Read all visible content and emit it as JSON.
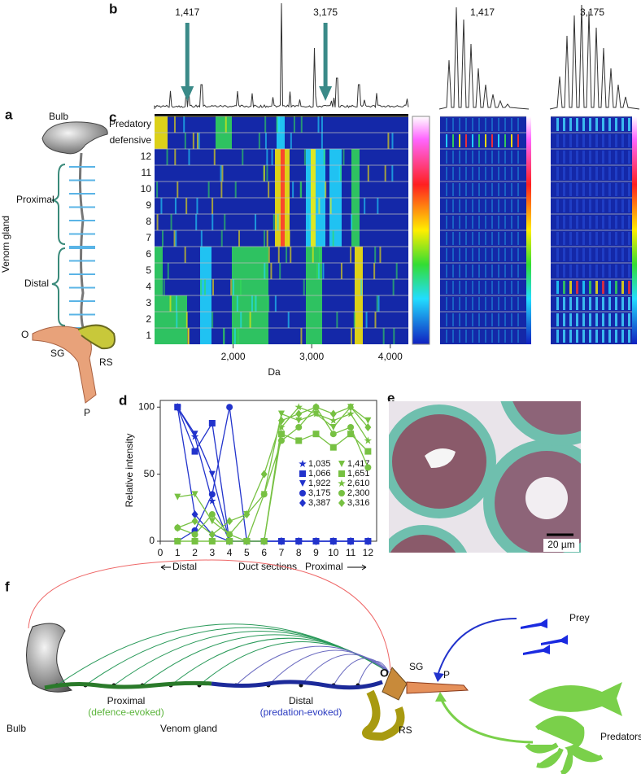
{
  "panel_labels": [
    "a",
    "b",
    "c",
    "d",
    "e",
    "f"
  ],
  "panel_a": {
    "bulb": "Bulb",
    "proximal": "Proximal",
    "distal": "Distal",
    "venom_gland": "Venom gland",
    "o": "O",
    "sg": "SG",
    "rs": "RS",
    "p": "P"
  },
  "panel_b": {
    "peaks": [
      {
        "value": 1417,
        "label": "1,417"
      },
      {
        "value": 3175,
        "label": "3,175"
      }
    ],
    "zoom_labels": [
      "1,417",
      "3,175"
    ]
  },
  "panel_c": {
    "row_labels": [
      "Predatory",
      "defensive",
      "12",
      "11",
      "10",
      "9",
      "8",
      "7",
      "6",
      "5",
      "4",
      "3",
      "2",
      "1"
    ],
    "x_axis_label": "Da",
    "xlim": [
      1000,
      4230
    ],
    "xticks": [
      {
        "value": 2000,
        "label": "2,000"
      },
      {
        "value": 3000,
        "label": "3,000"
      },
      {
        "value": 4000,
        "label": "4,000"
      }
    ]
  },
  "chart_data": {
    "type": "line",
    "y_axis_label": "Relative intensity",
    "x_axis_label": "Duct sections",
    "x_direction_labels": [
      "Distal",
      "Proximal"
    ],
    "x": [
      1,
      2,
      3,
      4,
      5,
      6,
      7,
      8,
      9,
      10,
      11,
      12
    ],
    "xlim": [
      0,
      12.5
    ],
    "xticks": [
      0,
      1,
      2,
      3,
      4,
      5,
      6,
      7,
      8,
      9,
      10,
      11,
      12
    ],
    "ylim": [
      0,
      105
    ],
    "yticks": [
      0,
      50,
      100
    ],
    "series": [
      {
        "name": "1,035",
        "color": "#2233cc",
        "marker": "star",
        "values": [
          100,
          78,
          30,
          0,
          0,
          0,
          0,
          0,
          0,
          0,
          0,
          0
        ]
      },
      {
        "name": "1,066",
        "color": "#2233cc",
        "marker": "square",
        "values": [
          100,
          67,
          88,
          0,
          0,
          0,
          0,
          0,
          0,
          0,
          0,
          0
        ]
      },
      {
        "name": "1,922",
        "color": "#2233cc",
        "marker": "triangle-down",
        "values": [
          100,
          80,
          50,
          0,
          0,
          0,
          0,
          0,
          0,
          0,
          0,
          0
        ]
      },
      {
        "name": "3,175",
        "color": "#2233cc",
        "marker": "circle",
        "values": [
          0,
          8,
          35,
          100,
          0,
          0,
          0,
          0,
          0,
          0,
          0,
          0
        ]
      },
      {
        "name": "3,387",
        "color": "#2233cc",
        "marker": "diamond",
        "values": [
          100,
          20,
          5,
          0,
          0,
          0,
          0,
          0,
          0,
          0,
          0,
          0
        ]
      },
      {
        "name": "1,417",
        "color": "#77c142",
        "marker": "triangle-down",
        "values": [
          33,
          35,
          15,
          5,
          20,
          35,
          95,
          90,
          95,
          85,
          100,
          90
        ]
      },
      {
        "name": "1,651",
        "color": "#77c142",
        "marker": "square",
        "values": [
          0,
          0,
          0,
          0,
          0,
          0,
          80,
          75,
          80,
          70,
          80,
          67
        ]
      },
      {
        "name": "2,610",
        "color": "#77c142",
        "marker": "star",
        "values": [
          0,
          0,
          0,
          0,
          0,
          0,
          85,
          100,
          95,
          90,
          95,
          75
        ]
      },
      {
        "name": "2,300",
        "color": "#77c142",
        "marker": "circle",
        "values": [
          10,
          5,
          20,
          5,
          0,
          35,
          75,
          85,
          100,
          80,
          85,
          55
        ]
      },
      {
        "name": "3,316",
        "color": "#77c142",
        "marker": "diamond",
        "values": [
          10,
          15,
          5,
          15,
          20,
          50,
          90,
          95,
          100,
          95,
          100,
          85
        ]
      }
    ]
  },
  "panel_e": {
    "scale_bar": "20 µm"
  },
  "panel_f": {
    "prey": "Prey",
    "predators": "Predators",
    "bulb": "Bulb",
    "venom_gland": "Venom gland",
    "proximal": "Proximal",
    "proximal_note": "(defence-evoked)",
    "distal": "Distal",
    "distal_note": "(predation-evoked)",
    "o": "O",
    "sg": "SG",
    "p": "P",
    "rs": "RS"
  }
}
